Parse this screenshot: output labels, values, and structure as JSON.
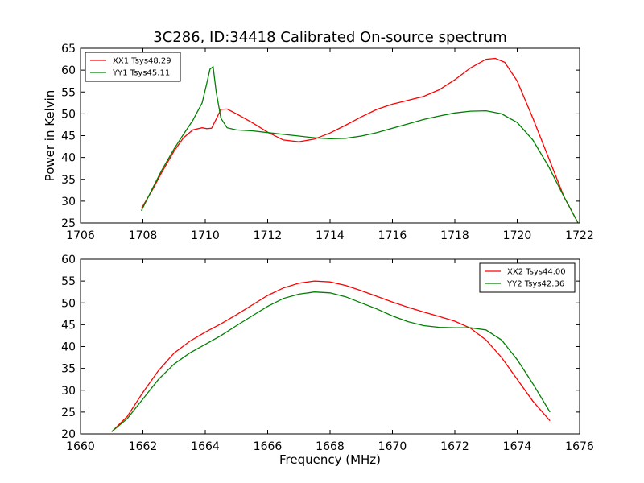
{
  "figure": {
    "title": "3C286, ID:34418 Calibrated On-source spectrum",
    "xlabel": "Frequency (MHz)"
  },
  "chart_data": [
    {
      "type": "line",
      "title": "3C286, ID:34418 Calibrated On-source spectrum",
      "xlabel": "",
      "ylabel": "Power in Kelvin",
      "xlim": [
        1706,
        1722
      ],
      "ylim": [
        25,
        65
      ],
      "xticks": [
        1706,
        1708,
        1710,
        1712,
        1714,
        1716,
        1718,
        1720,
        1722
      ],
      "yticks": [
        25,
        30,
        35,
        40,
        45,
        50,
        55,
        60,
        65
      ],
      "grid": false,
      "legend_position": "top-left",
      "series": [
        {
          "name": "XX1 Tsys48.29",
          "color": "#ff0000",
          "x": [
            1707.95,
            1708.3,
            1708.6,
            1709.0,
            1709.3,
            1709.6,
            1709.9,
            1710.05,
            1710.2,
            1710.35,
            1710.5,
            1710.7,
            1711.0,
            1711.5,
            1712.0,
            1712.5,
            1713.0,
            1713.5,
            1714.0,
            1714.5,
            1715.0,
            1715.5,
            1716.0,
            1716.5,
            1717.0,
            1717.5,
            1718.0,
            1718.5,
            1719.0,
            1719.3,
            1719.6,
            1720.0,
            1720.5,
            1721.0,
            1721.5,
            1721.95
          ],
          "y": [
            28.3,
            32.5,
            36.5,
            41.5,
            44.5,
            46.3,
            46.8,
            46.6,
            46.7,
            48.8,
            51.0,
            51.1,
            50.0,
            48.0,
            45.8,
            44.0,
            43.6,
            44.2,
            45.6,
            47.4,
            49.3,
            51.0,
            52.2,
            53.1,
            54.0,
            55.5,
            57.8,
            60.5,
            62.5,
            62.7,
            61.8,
            57.5,
            49.0,
            40.0,
            31.0,
            25.0
          ]
        },
        {
          "name": "YY1 Tsys45.11",
          "color": "#008000",
          "x": [
            1707.95,
            1708.3,
            1708.6,
            1709.0,
            1709.3,
            1709.6,
            1709.9,
            1710.05,
            1710.15,
            1710.25,
            1710.35,
            1710.5,
            1710.7,
            1711.0,
            1711.5,
            1712.0,
            1712.5,
            1713.0,
            1713.5,
            1714.0,
            1714.5,
            1715.0,
            1715.5,
            1716.0,
            1716.5,
            1717.0,
            1717.5,
            1718.0,
            1718.5,
            1719.0,
            1719.5,
            1720.0,
            1720.5,
            1721.0,
            1721.5,
            1721.95
          ],
          "y": [
            27.8,
            32.8,
            37.0,
            42.0,
            45.3,
            48.5,
            52.5,
            57.0,
            60.2,
            60.8,
            55.0,
            49.0,
            46.8,
            46.3,
            46.1,
            45.7,
            45.3,
            44.9,
            44.5,
            44.3,
            44.4,
            44.9,
            45.7,
            46.7,
            47.7,
            48.7,
            49.5,
            50.2,
            50.6,
            50.7,
            50.0,
            48.0,
            44.0,
            38.0,
            31.0,
            25.0
          ]
        }
      ]
    },
    {
      "type": "line",
      "title": "",
      "xlabel": "Frequency (MHz)",
      "ylabel": "",
      "xlim": [
        1660,
        1676
      ],
      "ylim": [
        20,
        60
      ],
      "xticks": [
        1660,
        1662,
        1664,
        1666,
        1668,
        1670,
        1672,
        1674,
        1676
      ],
      "yticks": [
        20,
        25,
        30,
        35,
        40,
        45,
        50,
        55,
        60
      ],
      "grid": false,
      "legend_position": "top-right",
      "series": [
        {
          "name": "XX2 Tsys44.00",
          "color": "#ff0000",
          "x": [
            1661.0,
            1661.5,
            1662.0,
            1662.5,
            1663.0,
            1663.5,
            1664.0,
            1664.5,
            1665.0,
            1665.5,
            1666.0,
            1666.5,
            1667.0,
            1667.5,
            1668.0,
            1668.5,
            1669.0,
            1669.5,
            1670.0,
            1670.5,
            1671.0,
            1671.5,
            1672.0,
            1672.5,
            1673.0,
            1673.5,
            1674.0,
            1674.5,
            1675.05
          ],
          "y": [
            20.5,
            24.0,
            29.5,
            34.5,
            38.5,
            41.2,
            43.3,
            45.2,
            47.3,
            49.5,
            51.7,
            53.4,
            54.5,
            55.0,
            54.8,
            54.0,
            52.8,
            51.5,
            50.2,
            49.0,
            47.9,
            46.9,
            45.8,
            44.2,
            41.5,
            37.5,
            32.5,
            27.5,
            23.0
          ]
        },
        {
          "name": "YY2 Tsys42.36",
          "color": "#008000",
          "x": [
            1661.0,
            1661.5,
            1662.0,
            1662.5,
            1663.0,
            1663.5,
            1664.0,
            1664.5,
            1665.0,
            1665.5,
            1666.0,
            1666.5,
            1667.0,
            1667.5,
            1668.0,
            1668.5,
            1669.0,
            1669.5,
            1670.0,
            1670.5,
            1671.0,
            1671.5,
            1672.0,
            1672.5,
            1673.0,
            1673.5,
            1674.0,
            1674.5,
            1675.05
          ],
          "y": [
            20.5,
            23.5,
            28.0,
            32.5,
            36.0,
            38.5,
            40.5,
            42.5,
            44.8,
            47.0,
            49.2,
            51.0,
            52.0,
            52.5,
            52.3,
            51.4,
            50.0,
            48.6,
            47.0,
            45.7,
            44.8,
            44.4,
            44.3,
            44.3,
            43.8,
            41.5,
            37.0,
            31.5,
            25.0
          ]
        }
      ]
    }
  ]
}
